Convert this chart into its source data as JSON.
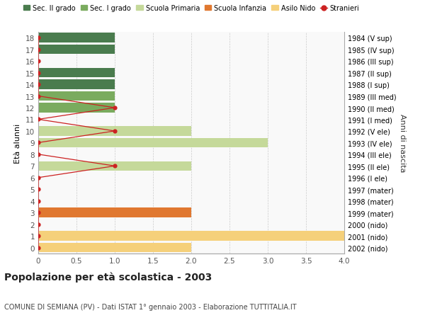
{
  "ages": [
    18,
    17,
    16,
    15,
    14,
    13,
    12,
    11,
    10,
    9,
    8,
    7,
    6,
    5,
    4,
    3,
    2,
    1,
    0
  ],
  "years": [
    "1984 (V sup)",
    "1985 (IV sup)",
    "1986 (III sup)",
    "1987 (II sup)",
    "1988 (I sup)",
    "1989 (III med)",
    "1990 (II med)",
    "1991 (I med)",
    "1992 (V ele)",
    "1993 (IV ele)",
    "1994 (III ele)",
    "1995 (II ele)",
    "1996 (I ele)",
    "1997 (mater)",
    "1998 (mater)",
    "1999 (mater)",
    "2000 (nido)",
    "2001 (nido)",
    "2002 (nido)"
  ],
  "bar_values": [
    1,
    1,
    0,
    1,
    1,
    1,
    1,
    0,
    2,
    3,
    0,
    2,
    0,
    0,
    0,
    2,
    0,
    4,
    2
  ],
  "bar_colors": [
    "#4a7c4e",
    "#4a7c4e",
    "#4a7c4e",
    "#4a7c4e",
    "#4a7c4e",
    "#7aab5e",
    "#7aab5e",
    "#7aab5e",
    "#c5d99a",
    "#c5d99a",
    "#c5d99a",
    "#c5d99a",
    "#c5d99a",
    "#e07830",
    "#e07830",
    "#e07830",
    "#f5d07a",
    "#f5d07a",
    "#f5d07a"
  ],
  "title": "Popolazione per età scolastica - 2003",
  "subtitle": "COMUNE DI SEMIANA (PV) - Dati ISTAT 1° gennaio 2003 - Elaborazione TUTTITALIA.IT",
  "ylabel": "Età alunni",
  "ylabel2": "Anni di nascita",
  "xlim": [
    0,
    4.0
  ],
  "xticks": [
    0,
    0.5,
    1.0,
    1.5,
    2.0,
    2.5,
    3.0,
    3.5,
    4.0
  ],
  "bg_color": "#ffffff",
  "plot_bg": "#f9f9f9",
  "grid_color": "#cccccc",
  "colors": {
    "sec2": "#4a7c4e",
    "sec1": "#7aab5e",
    "primaria": "#c5d99a",
    "infanzia": "#e07830",
    "nido": "#f5d07a",
    "stranieri": "#cc2222"
  },
  "legend_labels": [
    "Sec. II grado",
    "Sec. I grado",
    "Scuola Primaria",
    "Scuola Infanzia",
    "Asilo Nido",
    "Stranieri"
  ],
  "stranieri_line_vals": [
    0,
    0,
    0,
    0,
    0,
    0,
    1,
    0,
    1,
    0,
    0,
    1,
    0,
    0,
    0,
    0,
    0,
    0,
    0
  ]
}
